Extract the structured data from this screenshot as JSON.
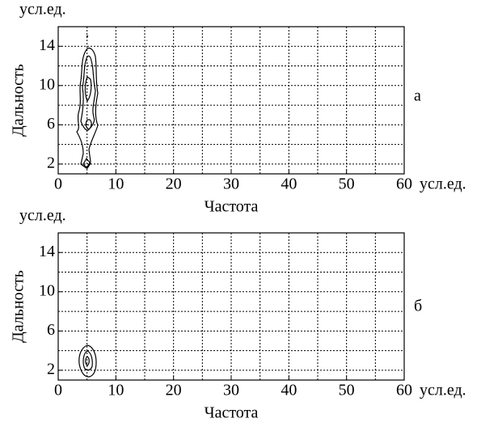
{
  "chart_data": [
    {
      "type": "contour",
      "panel_label": "а",
      "y_unit": "усл.ед.",
      "x_unit": "усл.ед.",
      "ylabel": "Дальность",
      "xlabel": "Частота",
      "xlim": [
        0,
        60
      ],
      "ylim": [
        1,
        16
      ],
      "xticks": [
        0,
        10,
        20,
        30,
        40,
        50,
        60
      ],
      "yticks": [
        2,
        6,
        10,
        14
      ],
      "xgrid": [
        5,
        10,
        15,
        20,
        25,
        30,
        35,
        40,
        45,
        50,
        55
      ],
      "ygrid": [
        2,
        4,
        6,
        8,
        10,
        12,
        14
      ],
      "grid": true
    },
    {
      "type": "contour",
      "panel_label": "б",
      "y_unit": "усл.ед.",
      "x_unit": "усл.ед.",
      "ylabel": "Дальность",
      "xlabel": "Частота",
      "xlim": [
        0,
        60
      ],
      "ylim": [
        1,
        16
      ],
      "xticks": [
        0,
        10,
        20,
        30,
        40,
        50,
        60
      ],
      "yticks": [
        2,
        6,
        10,
        14
      ],
      "xgrid": [
        5,
        10,
        15,
        20,
        25,
        30,
        35,
        40,
        45,
        50,
        55
      ],
      "ygrid": [
        2,
        4,
        6,
        8,
        10,
        12,
        14
      ],
      "grid": true
    }
  ]
}
